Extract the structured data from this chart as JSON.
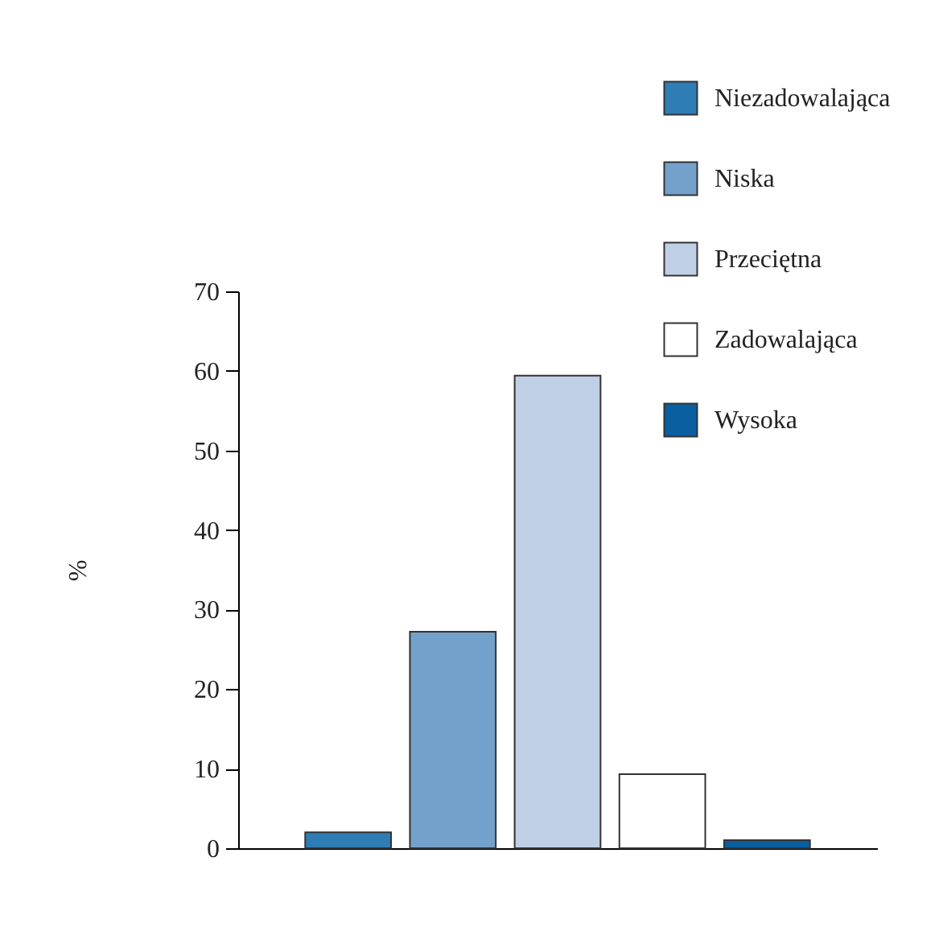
{
  "chart_data": {
    "type": "bar",
    "ylabel": "%",
    "categories": [
      null,
      null,
      null,
      null,
      null
    ],
    "series": [
      {
        "name": "Niezadowalająca",
        "color": "#2e7db5",
        "values": [
          2.0,
          null,
          null,
          null,
          null
        ]
      },
      {
        "name": "Niska",
        "color": "#74a1cb",
        "values": [
          null,
          27.2,
          null,
          null,
          null
        ]
      },
      {
        "name": "Przeciętna",
        "color": "#bfcfe6",
        "values": [
          null,
          null,
          59.4,
          null,
          null
        ]
      },
      {
        "name": "Zadowalająca",
        "color": "#ffffff",
        "values": [
          null,
          null,
          null,
          9.3,
          null
        ]
      },
      {
        "name": "Wysoka",
        "color": "#0a5fa0",
        "values": [
          null,
          null,
          null,
          null,
          1.0
        ]
      }
    ],
    "ylim": [
      0,
      70
    ],
    "yticks": [
      0,
      10,
      20,
      30,
      40,
      50,
      60,
      70
    ],
    "grid": false,
    "legend": "top right",
    "tick_labels": "y"
  }
}
